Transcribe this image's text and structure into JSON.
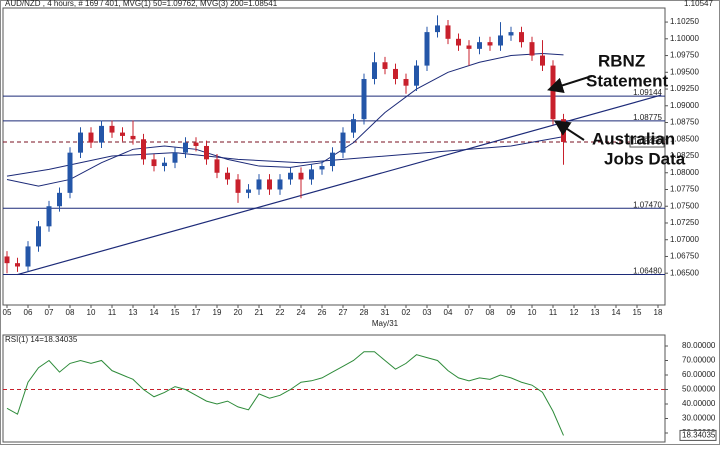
{
  "chart_data": [
    {
      "type": "candlestick",
      "title": "AUD/NZD , 4 hours, # 169 / 401, MVG(1) 50=1.09762, MVG(3) 200=1.08541",
      "top_label": "1.10547",
      "xlim": [
        0,
        62
      ],
      "ylim": [
        1.061,
        1.1046
      ],
      "xticks": [
        {
          "value": 0,
          "label": "05"
        },
        {
          "value": 2,
          "label": "06"
        },
        {
          "value": 4,
          "label": "07"
        },
        {
          "value": 6,
          "label": "08"
        },
        {
          "value": 8,
          "label": "10"
        },
        {
          "value": 10,
          "label": "11"
        },
        {
          "value": 12,
          "label": "13"
        },
        {
          "value": 14,
          "label": "14"
        },
        {
          "value": 16,
          "label": "15"
        },
        {
          "value": 18,
          "label": "17"
        },
        {
          "value": 20,
          "label": "19"
        },
        {
          "value": 22,
          "label": "20"
        },
        {
          "value": 24,
          "label": "21"
        },
        {
          "value": 26,
          "label": "22"
        },
        {
          "value": 28,
          "label": "24"
        },
        {
          "value": 30,
          "label": "26"
        },
        {
          "value": 32,
          "label": "27"
        },
        {
          "value": 34,
          "label": "28"
        },
        {
          "value": 36,
          "label": "31"
        },
        {
          "value": 38,
          "label": "02"
        },
        {
          "value": 40,
          "label": "03"
        },
        {
          "value": 42,
          "label": "04"
        },
        {
          "value": 44,
          "label": "07"
        },
        {
          "value": 46,
          "label": "08"
        },
        {
          "value": 48,
          "label": "09"
        },
        {
          "value": 50,
          "label": "10"
        },
        {
          "value": 52,
          "label": "11"
        },
        {
          "value": 54,
          "label": "12"
        },
        {
          "value": 56,
          "label": "13"
        },
        {
          "value": 58,
          "label": "14"
        },
        {
          "value": 60,
          "label": "15"
        },
        {
          "value": 62,
          "label": "18"
        }
      ],
      "month_label": {
        "value": 36,
        "label": "May/31"
      },
      "yticks": [
        {
          "value": 1.065,
          "label": "1.06500"
        },
        {
          "value": 1.0675,
          "label": "1.06750"
        },
        {
          "value": 1.07,
          "label": "1.07000"
        },
        {
          "value": 1.0725,
          "label": "1.07250"
        },
        {
          "value": 1.075,
          "label": "1.07500"
        },
        {
          "value": 1.0775,
          "label": "1.07750"
        },
        {
          "value": 1.08,
          "label": "1.08000"
        },
        {
          "value": 1.0825,
          "label": "1.08250"
        },
        {
          "value": 1.085,
          "label": "1.08500"
        },
        {
          "value": 1.0875,
          "label": "1.08750"
        },
        {
          "value": 1.09,
          "label": "1.09000"
        },
        {
          "value": 1.0925,
          "label": "1.09250"
        },
        {
          "value": 1.095,
          "label": "1.09500"
        },
        {
          "value": 1.0975,
          "label": "1.09750"
        },
        {
          "value": 1.1,
          "label": "1.10000"
        },
        {
          "value": 1.1025,
          "label": "1.10250"
        }
      ],
      "up_color": "#2456a8",
      "down_color": "#c8202c",
      "line_color": "#1c2a78",
      "open": [
        1.0675,
        1.0665,
        1.066,
        1.069,
        1.072,
        1.075,
        1.077,
        1.083,
        1.086,
        1.0845,
        1.087,
        1.086,
        1.0855,
        1.085,
        1.082,
        1.081,
        1.0815,
        1.083,
        1.0845,
        1.084,
        1.082,
        1.08,
        1.079,
        1.077,
        1.0775,
        1.079,
        1.0775,
        1.079,
        1.08,
        1.079,
        1.0805,
        1.081,
        1.083,
        1.086,
        1.088,
        1.094,
        1.0965,
        1.0955,
        1.094,
        1.093,
        1.096,
        1.101,
        1.102,
        1.1,
        1.099,
        1.0985,
        1.0995,
        1.099,
        1.1005,
        1.101,
        1.0995,
        1.0975,
        1.096,
        1.088
      ],
      "high": [
        1.0683,
        1.0673,
        1.0698,
        1.0728,
        1.0758,
        1.0778,
        1.0838,
        1.0868,
        1.0868,
        1.0878,
        1.0878,
        1.0868,
        1.0878,
        1.0858,
        1.0828,
        1.0823,
        1.0838,
        1.0853,
        1.0853,
        1.0848,
        1.0828,
        1.0808,
        1.0798,
        1.0783,
        1.0798,
        1.0798,
        1.0798,
        1.0808,
        1.0808,
        1.0813,
        1.0818,
        1.0838,
        1.0868,
        1.0888,
        1.0948,
        1.098,
        1.0973,
        1.0963,
        1.0948,
        1.0968,
        1.1018,
        1.1035,
        1.1028,
        1.1008,
        1.0998,
        1.1003,
        1.1003,
        1.1025,
        1.1018,
        1.1018,
        1.1003,
        1.0998,
        1.0968,
        1.0888
      ],
      "low": [
        1.065,
        1.0652,
        1.0652,
        1.0682,
        1.0712,
        1.0742,
        1.0762,
        1.0822,
        1.0837,
        1.0837,
        1.0852,
        1.0847,
        1.0842,
        1.0812,
        1.0802,
        1.0802,
        1.0807,
        1.0822,
        1.0832,
        1.0812,
        1.0792,
        1.0782,
        1.0755,
        1.0762,
        1.0767,
        1.0767,
        1.0767,
        1.0782,
        1.0762,
        1.0782,
        1.0797,
        1.0802,
        1.0822,
        1.0852,
        1.0872,
        1.0932,
        1.0947,
        1.0932,
        1.0918,
        1.0922,
        1.0952,
        1.1002,
        1.0992,
        1.0982,
        1.096,
        1.0977,
        1.0982,
        1.0982,
        1.0997,
        1.0987,
        1.0967,
        1.0952,
        1.0872,
        1.0812
      ],
      "close": [
        1.0665,
        1.066,
        1.069,
        1.072,
        1.075,
        1.077,
        1.083,
        1.086,
        1.0845,
        1.087,
        1.086,
        1.0855,
        1.085,
        1.082,
        1.081,
        1.0815,
        1.083,
        1.0845,
        1.084,
        1.082,
        1.08,
        1.079,
        1.077,
        1.0775,
        1.079,
        1.0775,
        1.079,
        1.08,
        1.079,
        1.0805,
        1.081,
        1.083,
        1.086,
        1.088,
        1.094,
        1.0965,
        1.0955,
        1.094,
        1.093,
        1.096,
        1.101,
        1.102,
        1.1,
        1.099,
        1.0985,
        1.0995,
        1.099,
        1.1005,
        1.101,
        1.0995,
        1.0975,
        1.096,
        1.088,
        1.0846
      ],
      "moving_averages": [
        {
          "x": [
            0,
            3,
            6,
            9,
            12,
            15,
            18,
            21,
            24,
            27,
            30,
            33,
            36,
            39,
            42,
            45,
            48,
            51,
            53
          ],
          "values": [
            1.079,
            1.078,
            1.079,
            1.0815,
            1.0835,
            1.084,
            1.0835,
            1.082,
            1.081,
            1.0808,
            1.0815,
            1.0845,
            1.089,
            1.0925,
            1.095,
            1.0965,
            1.0975,
            1.0978,
            1.0976
          ]
        },
        {
          "x": [
            0,
            4,
            10,
            16,
            22,
            28,
            32,
            40,
            48,
            53
          ],
          "values": [
            1.0795,
            1.0805,
            1.0825,
            1.083,
            1.082,
            1.0815,
            1.082,
            1.083,
            1.084,
            1.0854
          ]
        }
      ],
      "trendline": {
        "x": [
          1,
          62.3
        ],
        "values": [
          1.0648,
          1.0916
        ]
      },
      "levels": [
        {
          "value": 1.09144,
          "label": "1.09144",
          "dashed": false,
          "boxed": false
        },
        {
          "value": 1.08775,
          "label": "1.08775",
          "dashed": false,
          "boxed": false
        },
        {
          "value": 1.08459,
          "label": "1.08459",
          "dashed": true,
          "boxed": true
        },
        {
          "value": 1.0747,
          "label": "1.07470",
          "dashed": false,
          "boxed": false
        },
        {
          "value": 1.0648,
          "label": "1.06480",
          "dashed": false,
          "boxed": false
        }
      ],
      "annotations": [
        {
          "lines": [
            "RBNZ",
            "Statement"
          ],
          "x": 51.8,
          "y": 1.0925
        },
        {
          "lines": [
            "Australian",
            "Jobs Data"
          ],
          "x": 52.4,
          "y": 1.0875
        }
      ]
    },
    {
      "type": "line",
      "title": "RSI(1) 14=18.34035",
      "last_label": "18.34035",
      "color": "#2e8b3a",
      "xlim": [
        0,
        62
      ],
      "ylim": [
        13.8,
        86.2
      ],
      "yticks": [
        {
          "value": 20,
          "label": "20.00000"
        },
        {
          "value": 30,
          "label": "30.00000"
        },
        {
          "value": 40,
          "label": "40.00000"
        },
        {
          "value": 50,
          "label": "50.00000"
        },
        {
          "value": 60,
          "label": "60.00000"
        },
        {
          "value": 70,
          "label": "70.00000"
        },
        {
          "value": 80,
          "label": "80.00000"
        }
      ],
      "reference": 50,
      "values": [
        37,
        33,
        55,
        65,
        70,
        62,
        68,
        70,
        68,
        70,
        63,
        60,
        57,
        50,
        45,
        48,
        52,
        50,
        46,
        42,
        40,
        42,
        38,
        36,
        47,
        44,
        46,
        50,
        55,
        56,
        58,
        62,
        66,
        70,
        76,
        76,
        70,
        64,
        68,
        74,
        72,
        70,
        63,
        58,
        56,
        58,
        57,
        60,
        58,
        55,
        53,
        48,
        35,
        18.34035
      ]
    }
  ]
}
